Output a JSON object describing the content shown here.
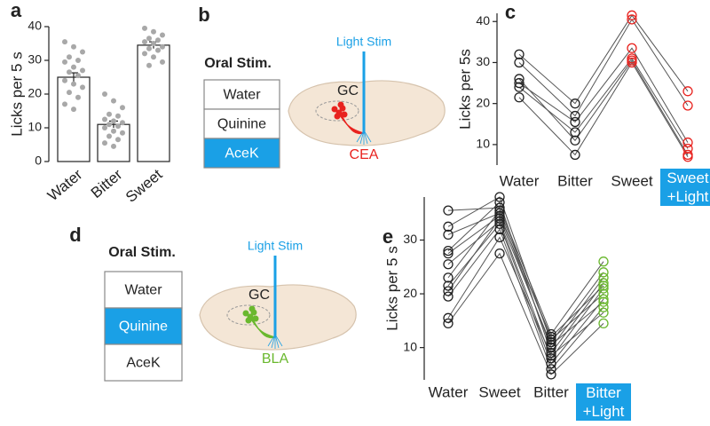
{
  "chart_data": [
    {
      "type": "bar",
      "panel": "a",
      "ylabel": "Licks per 5 s",
      "categories": [
        "Water",
        "Bitter",
        "Sweet"
      ],
      "values": [
        25,
        11,
        34.5
      ],
      "errors": [
        1.3,
        1,
        1
      ],
      "points": [
        [
          35.5,
          34,
          32.5,
          31,
          30,
          29.5,
          28,
          27,
          26.5,
          25.5,
          24,
          23,
          22,
          20.5,
          19,
          17,
          15.5
        ],
        [
          20,
          18,
          16,
          14,
          13.5,
          12.5,
          12,
          11.5,
          11,
          10.5,
          10,
          9,
          8.5,
          7.5,
          6.5,
          5.5,
          4.5
        ],
        [
          39.5,
          38.5,
          37.5,
          36.5,
          36,
          35.5,
          35,
          34,
          33.5,
          33,
          32,
          31,
          29.5,
          28.5
        ]
      ],
      "color": "#ffffff",
      "point_color": "#a8a8a8",
      "ylim": [
        0,
        40
      ],
      "yticks": [
        0,
        10,
        20,
        30,
        40
      ]
    },
    {
      "type": "line",
      "panel": "c",
      "ylabel": "Licks per 5s",
      "categories": [
        "Water",
        "Bitter",
        "Sweet",
        "Sweet\n+Light"
      ],
      "category_colors": [
        "#222222",
        "#222222",
        "#e8231f",
        "#e8231f"
      ],
      "series": [
        {
          "values": [
            32,
            20,
            41.5,
            23
          ]
        },
        {
          "values": [
            30,
            17,
            40.5,
            19.5
          ]
        },
        {
          "values": [
            25,
            15.5,
            33.5,
            10.5
          ]
        },
        {
          "values": [
            24,
            13,
            31,
            9
          ]
        },
        {
          "values": [
            26,
            11,
            30.5,
            7.5
          ]
        },
        {
          "values": [
            21.5,
            7.5,
            30,
            7
          ]
        }
      ],
      "ylim": [
        5,
        42
      ],
      "yticks": [
        10,
        20,
        30,
        40
      ]
    },
    {
      "type": "line",
      "panel": "e",
      "ylabel": "Licks per 5 s",
      "categories": [
        "Water",
        "Sweet",
        "Bitter",
        "Bitter\n+Light"
      ],
      "category_colors": [
        "#222222",
        "#222222",
        "#222222",
        "#6ab82e"
      ],
      "series": [
        {
          "values": [
            35.5,
            36,
            12.5,
            26
          ]
        },
        {
          "values": [
            32.5,
            38,
            11,
            24
          ]
        },
        {
          "values": [
            31,
            35,
            10,
            23
          ]
        },
        {
          "values": [
            28,
            37,
            9,
            22
          ]
        },
        {
          "values": [
            27.5,
            34.5,
            12,
            21.5
          ]
        },
        {
          "values": [
            25.5,
            33.5,
            8,
            21
          ]
        },
        {
          "values": [
            23,
            35.5,
            11.5,
            20
          ]
        },
        {
          "values": [
            21.5,
            33,
            7,
            19
          ]
        },
        {
          "values": [
            20.5,
            34,
            10.5,
            18.5
          ]
        },
        {
          "values": [
            19.5,
            32,
            6,
            17.5
          ]
        },
        {
          "values": [
            15.5,
            30.5,
            8.5,
            16.5
          ]
        },
        {
          "values": [
            14.5,
            27.5,
            5,
            14.5
          ]
        }
      ],
      "ylim": [
        4,
        38
      ],
      "yticks": [
        10,
        20,
        30
      ]
    }
  ],
  "diagrams": [
    {
      "panel": "b",
      "title": "Oral Stim.",
      "options": [
        "Water",
        "Quinine",
        "AceK"
      ],
      "selected": 2,
      "light_label": "Light Stim",
      "region_label": "GC",
      "target_label": "CEA",
      "target_color": "#e8231f"
    },
    {
      "panel": "d",
      "title": "Oral Stim.",
      "options": [
        "Water",
        "Quinine",
        "AceK"
      ],
      "selected": 1,
      "light_label": "Light Stim",
      "region_label": "GC",
      "target_label": "BLA",
      "target_color": "#6ab82e"
    }
  ]
}
